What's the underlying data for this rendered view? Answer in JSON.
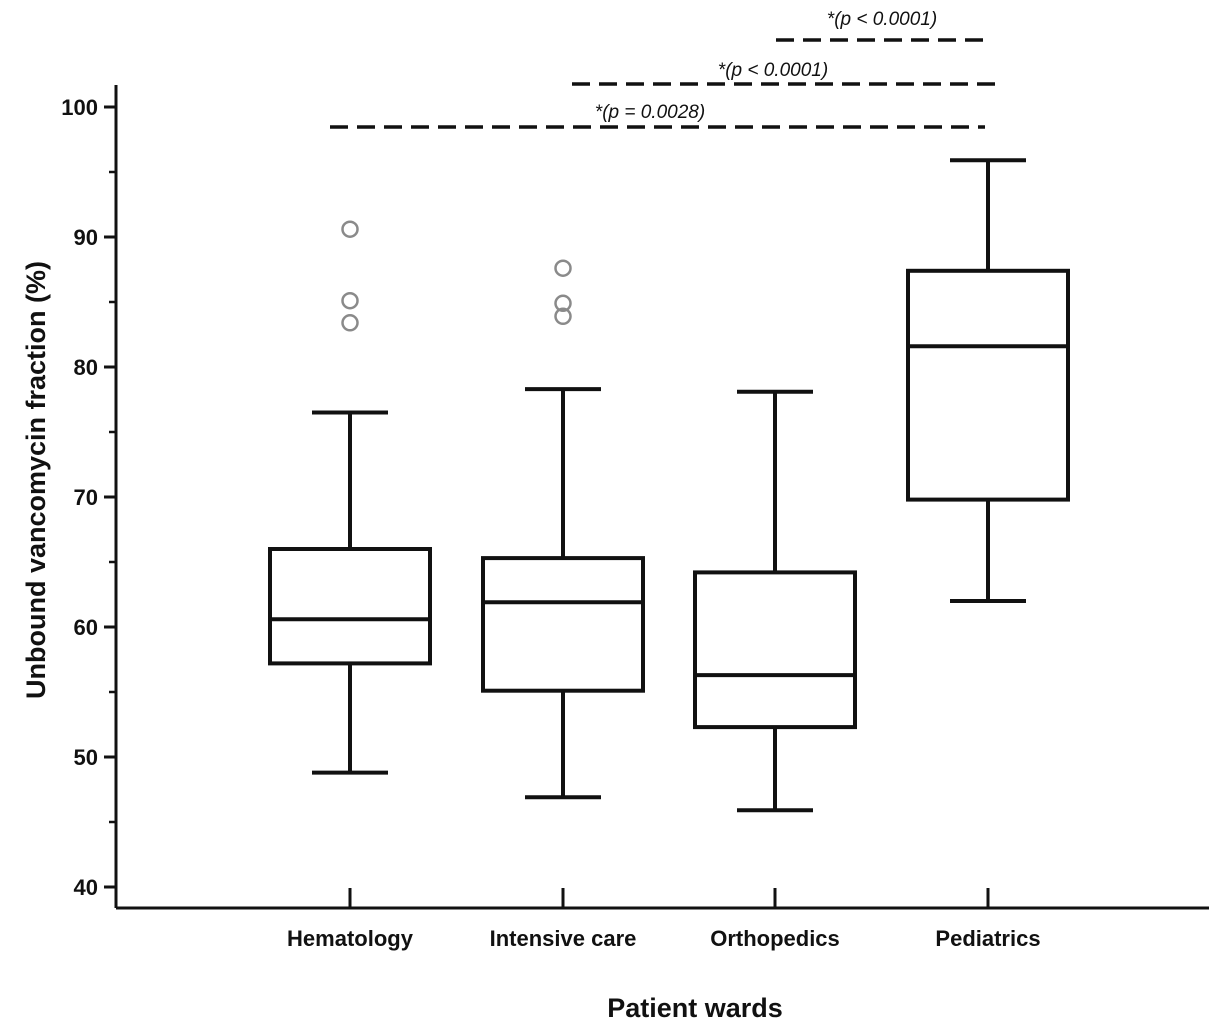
{
  "chart_data": {
    "type": "box",
    "xlabel": "Patient wards",
    "ylabel": "Unbound vancomycin fraction (%)",
    "ylim": [
      40,
      100
    ],
    "yticks": [
      40,
      50,
      60,
      70,
      80,
      90,
      100
    ],
    "grid": false,
    "categories": [
      "Hematology",
      "Intensive care",
      "Orthopedics",
      "Pediatrics"
    ],
    "boxes": [
      {
        "category": "Hematology",
        "whisker_low": 48.8,
        "q1": 57.2,
        "median": 60.6,
        "q3": 66.0,
        "whisker_high": 76.5,
        "outliers": [
          83.4,
          85.1,
          90.6
        ]
      },
      {
        "category": "Intensive care",
        "whisker_low": 46.9,
        "q1": 55.1,
        "median": 61.9,
        "q3": 65.3,
        "whisker_high": 78.3,
        "outliers": [
          83.9,
          84.9,
          87.6
        ]
      },
      {
        "category": "Orthopedics",
        "whisker_low": 45.9,
        "q1": 52.3,
        "median": 56.3,
        "q3": 64.2,
        "whisker_high": 78.1,
        "outliers": []
      },
      {
        "category": "Pediatrics",
        "whisker_low": 62.0,
        "q1": 69.8,
        "median": 81.6,
        "q3": 87.4,
        "whisker_high": 95.9,
        "outliers": []
      }
    ],
    "annotations": [
      {
        "text": "*(p = 0.0028)",
        "from": "Hematology",
        "to": "Pediatrics",
        "level": 1
      },
      {
        "text": "*(p < 0.0001)",
        "from": "Intensive care",
        "to": "Pediatrics",
        "level": 2
      },
      {
        "text": "*(p < 0.0001)",
        "from": "Orthopedics",
        "to": "Pediatrics",
        "level": 3
      }
    ]
  }
}
